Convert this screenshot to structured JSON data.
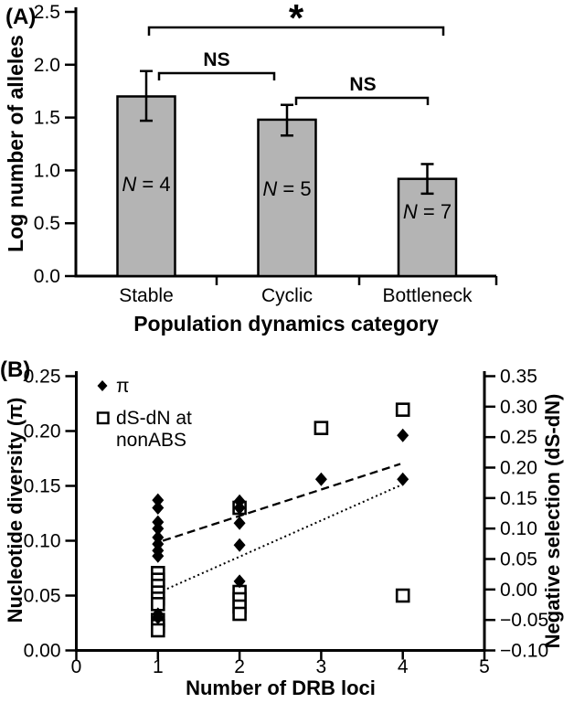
{
  "figure": {
    "panel_a_letter": "(A)",
    "panel_b_letter": "(B)",
    "colors": {
      "ink": "#000000",
      "bar_fill": "#b4b4b4",
      "background": "#ffffff"
    }
  },
  "chart_data": [
    {
      "type": "bar",
      "panel": "A",
      "xlabel": "Population dynamics category",
      "ylabel": "Log number of alleles",
      "ylim": [
        0,
        2.5
      ],
      "yticks": [
        0,
        0.5,
        1.0,
        1.5,
        2.0,
        2.5
      ],
      "grid": false,
      "categories": [
        "Stable",
        "Cyclic",
        "Bottleneck"
      ],
      "values": [
        1.7,
        1.48,
        0.92
      ],
      "error_low": [
        1.47,
        1.33,
        0.78
      ],
      "error_high": [
        1.94,
        1.62,
        1.06
      ],
      "bar_annotations": [
        "N = 4",
        "N = 5",
        "N = 7"
      ],
      "significance": [
        {
          "label": "*",
          "between": [
            "Stable",
            "Bottleneck"
          ]
        },
        {
          "label": "NS",
          "between": [
            "Stable",
            "Cyclic"
          ]
        },
        {
          "label": "NS",
          "between": [
            "Cyclic",
            "Bottleneck"
          ]
        }
      ]
    },
    {
      "type": "scatter",
      "panel": "B",
      "xlabel": "Number of DRB loci",
      "ylabel_left": "Nucleotide diversity (π)",
      "ylabel_right": "Negative selection (dS-dN)",
      "xlim": [
        0,
        5
      ],
      "xticks": [
        0,
        1,
        2,
        3,
        4,
        5
      ],
      "ylim_left": [
        0,
        0.25
      ],
      "yticks_left": [
        0,
        0.05,
        0.1,
        0.15,
        0.2,
        0.25
      ],
      "ylim_right": [
        -0.1,
        0.35
      ],
      "yticks_right": [
        -0.1,
        -0.05,
        0,
        0.05,
        0.1,
        0.15,
        0.2,
        0.25,
        0.3,
        0.35
      ],
      "grid": false,
      "legend": {
        "position": "top-left-inside",
        "items": [
          {
            "label": "π",
            "marker": "filled-diamond"
          },
          {
            "label_line1": "dS-dN at",
            "label_line2": "nonABS",
            "marker": "open-square"
          }
        ]
      },
      "series": [
        {
          "name": "π",
          "marker": "filled-diamond",
          "axis": "left",
          "points": [
            {
              "x": 1,
              "y": 0.137
            },
            {
              "x": 1,
              "y": 0.13
            },
            {
              "x": 1,
              "y": 0.117
            },
            {
              "x": 1,
              "y": 0.111
            },
            {
              "x": 1,
              "y": 0.103
            },
            {
              "x": 1,
              "y": 0.097
            },
            {
              "x": 1,
              "y": 0.091
            },
            {
              "x": 1,
              "y": 0.086
            },
            {
              "x": 1,
              "y": 0.033
            },
            {
              "x": 1,
              "y": 0.03
            },
            {
              "x": 2,
              "y": 0.136
            },
            {
              "x": 2,
              "y": 0.13
            },
            {
              "x": 2,
              "y": 0.116
            },
            {
              "x": 2,
              "y": 0.096
            },
            {
              "x": 2,
              "y": 0.063
            },
            {
              "x": 3,
              "y": 0.156
            },
            {
              "x": 4,
              "y": 0.196
            },
            {
              "x": 4,
              "y": 0.156
            }
          ]
        },
        {
          "name": "dS-dN at nonABS",
          "marker": "open-square",
          "axis": "right",
          "points": [
            {
              "x": 1,
              "y": 0.027
            },
            {
              "x": 1,
              "y": 0.016
            },
            {
              "x": 1,
              "y": 0.006
            },
            {
              "x": 1,
              "y": -0.005
            },
            {
              "x": 1,
              "y": -0.015
            },
            {
              "x": 1,
              "y": -0.024
            },
            {
              "x": 1,
              "y": -0.05
            },
            {
              "x": 1,
              "y": -0.06
            },
            {
              "x": 1,
              "y": -0.067
            },
            {
              "x": 2,
              "y": 0.134
            },
            {
              "x": 2,
              "y": -0.004
            },
            {
              "x": 2,
              "y": -0.016
            },
            {
              "x": 2,
              "y": -0.028
            },
            {
              "x": 2,
              "y": -0.04
            },
            {
              "x": 3,
              "y": 0.265
            },
            {
              "x": 4,
              "y": 0.295
            },
            {
              "x": 4,
              "y": -0.01
            }
          ]
        }
      ],
      "trend_lines": [
        {
          "series": "π",
          "style": "dashed",
          "axis": "left",
          "from": {
            "x": 1.06,
            "y": 0.1
          },
          "to": {
            "x": 3.97,
            "y": 0.17
          }
        },
        {
          "series": "dS-dN at nonABS",
          "style": "dotted",
          "axis": "right",
          "from": {
            "x": 1.06,
            "y": -0.002
          },
          "to": {
            "x": 3.99,
            "y": 0.172
          }
        }
      ]
    }
  ]
}
